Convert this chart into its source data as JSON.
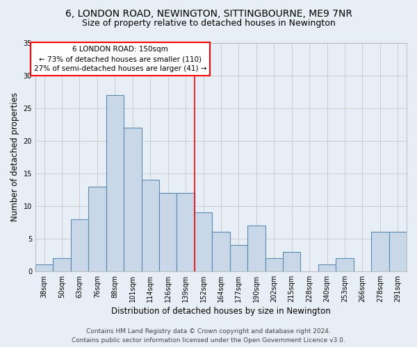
{
  "title": "6, LONDON ROAD, NEWINGTON, SITTINGBOURNE, ME9 7NR",
  "subtitle": "Size of property relative to detached houses in Newington",
  "xlabel": "Distribution of detached houses by size in Newington",
  "ylabel": "Number of detached properties",
  "categories": [
    "38sqm",
    "50sqm",
    "63sqm",
    "76sqm",
    "88sqm",
    "101sqm",
    "114sqm",
    "126sqm",
    "139sqm",
    "152sqm",
    "164sqm",
    "177sqm",
    "190sqm",
    "202sqm",
    "215sqm",
    "228sqm",
    "240sqm",
    "253sqm",
    "266sqm",
    "278sqm",
    "291sqm"
  ],
  "values": [
    1,
    2,
    8,
    13,
    27,
    22,
    14,
    12,
    12,
    9,
    6,
    4,
    7,
    2,
    3,
    0,
    1,
    2,
    0,
    6,
    6
  ],
  "bar_color": "#c8d8e8",
  "bar_edge_color": "#5a8ab0",
  "bar_linewidth": 0.8,
  "grid_color": "#cccccc",
  "background_color": "#e8eef5",
  "marker_line_color": "red",
  "marker_label": "6 LONDON ROAD: 150sqm",
  "annotation_line1": "← 73% of detached houses are smaller (110)",
  "annotation_line2": "27% of semi-detached houses are larger (41) →",
  "annotation_box_color": "white",
  "annotation_box_edge": "red",
  "ylim": [
    0,
    35
  ],
  "yticks": [
    0,
    5,
    10,
    15,
    20,
    25,
    30,
    35
  ],
  "footer1": "Contains HM Land Registry data © Crown copyright and database right 2024.",
  "footer2": "Contains public sector information licensed under the Open Government Licence v3.0.",
  "title_fontsize": 10,
  "subtitle_fontsize": 9,
  "xlabel_fontsize": 8.5,
  "ylabel_fontsize": 8.5,
  "tick_fontsize": 7,
  "footer_fontsize": 6.5,
  "annotation_fontsize": 7.5
}
